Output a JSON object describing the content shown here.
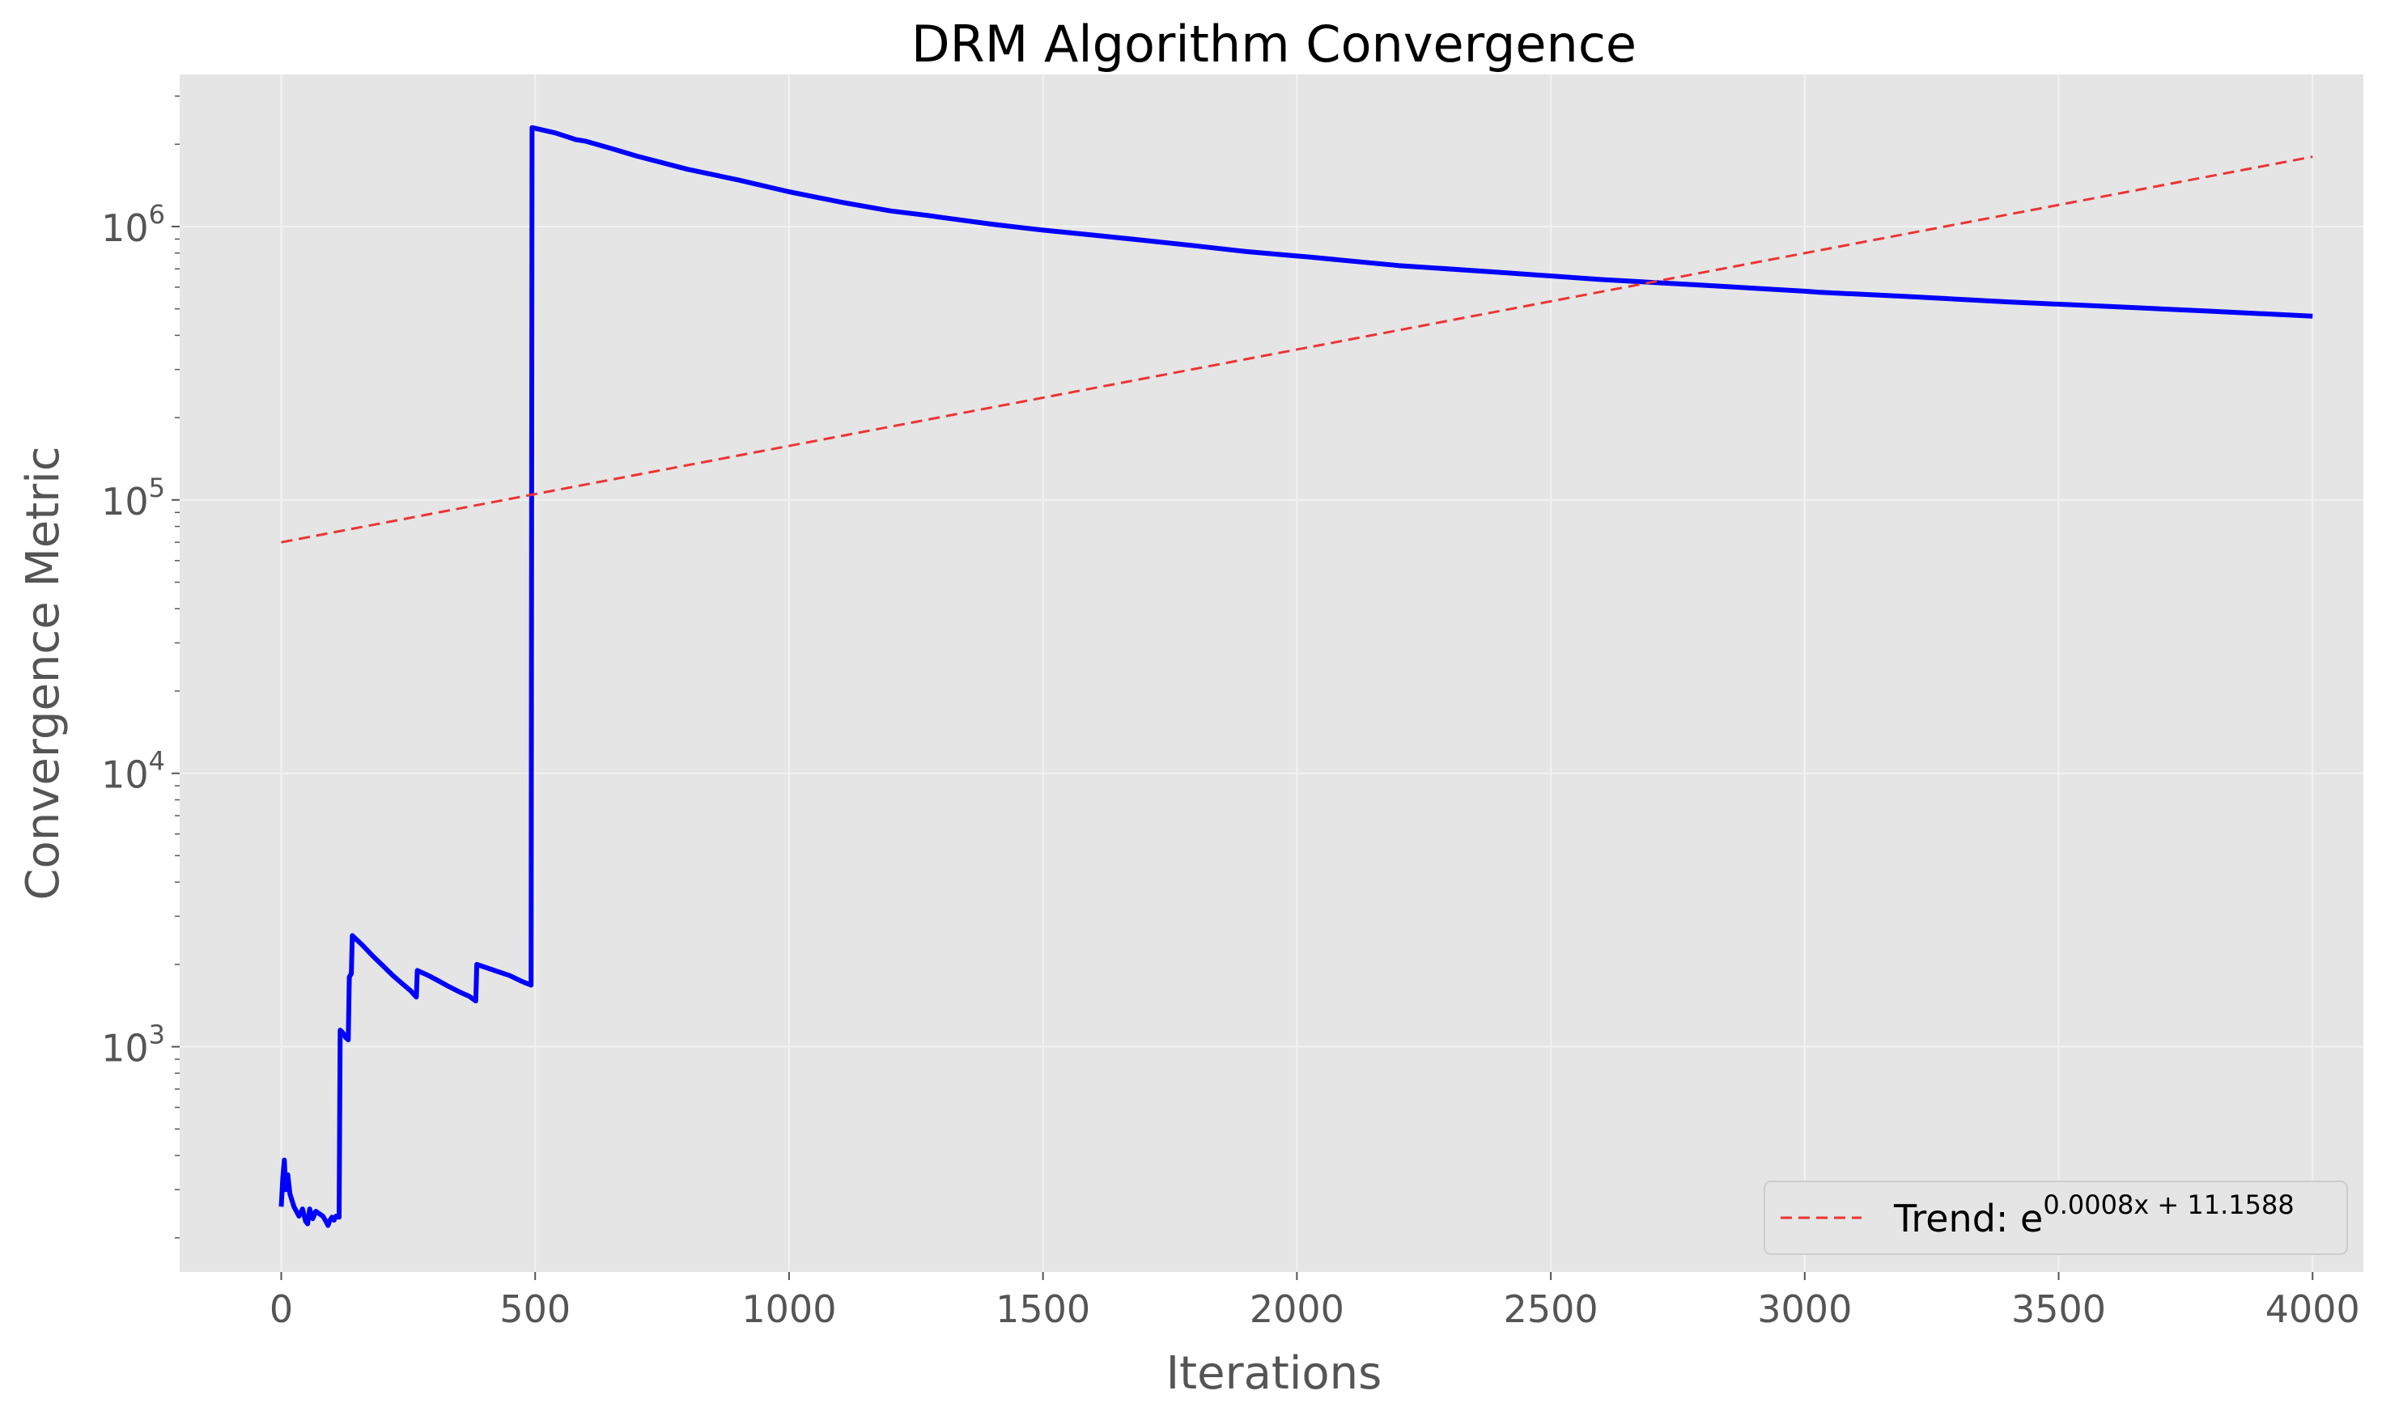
{
  "chart_data": {
    "type": "line",
    "title": "DRM Algorithm Convergence",
    "xlabel": "Iterations",
    "ylabel": "Convergence Metric",
    "xlim": [
      -200,
      4100
    ],
    "ylim": [
      150,
      3600000
    ],
    "yscale": "log",
    "grid": true,
    "legend_position": "lower-right",
    "x_ticks": [
      0,
      500,
      1000,
      1500,
      2000,
      2500,
      3000,
      3500,
      4000
    ],
    "y_ticks": [
      {
        "value": 1000,
        "base": "10",
        "exp": "3"
      },
      {
        "value": 10000,
        "base": "10",
        "exp": "4"
      },
      {
        "value": 100000,
        "base": "10",
        "exp": "5"
      },
      {
        "value": 1000000,
        "base": "10",
        "exp": "6"
      }
    ],
    "series": [
      {
        "color": "#0000ff",
        "style": "solid",
        "points": [
          [
            0,
            260
          ],
          [
            3,
            330
          ],
          [
            6,
            385
          ],
          [
            9,
            300
          ],
          [
            13,
            340
          ],
          [
            17,
            290
          ],
          [
            25,
            260
          ],
          [
            35,
            240
          ],
          [
            42,
            255
          ],
          [
            48,
            230
          ],
          [
            52,
            225
          ],
          [
            56,
            255
          ],
          [
            62,
            235
          ],
          [
            68,
            250
          ],
          [
            75,
            245
          ],
          [
            82,
            240
          ],
          [
            88,
            230
          ],
          [
            92,
            222
          ],
          [
            96,
            232
          ],
          [
            100,
            238
          ],
          [
            104,
            232
          ],
          [
            108,
            240
          ],
          [
            114,
            238
          ],
          [
            116,
            1150
          ],
          [
            122,
            1120
          ],
          [
            127,
            1080
          ],
          [
            132,
            1060
          ],
          [
            134,
            1800
          ],
          [
            138,
            1850
          ],
          [
            140,
            2550
          ],
          [
            160,
            2350
          ],
          [
            180,
            2150
          ],
          [
            200,
            1980
          ],
          [
            220,
            1820
          ],
          [
            240,
            1690
          ],
          [
            255,
            1600
          ],
          [
            266,
            1520
          ],
          [
            268,
            1900
          ],
          [
            290,
            1820
          ],
          [
            310,
            1740
          ],
          [
            330,
            1660
          ],
          [
            350,
            1590
          ],
          [
            370,
            1530
          ],
          [
            383,
            1470
          ],
          [
            385,
            2000
          ],
          [
            420,
            1900
          ],
          [
            450,
            1820
          ],
          [
            475,
            1730
          ],
          [
            492,
            1680
          ],
          [
            494,
            2300000
          ],
          [
            540,
            2200000
          ],
          [
            580,
            2080000
          ],
          [
            600,
            2050000
          ],
          [
            650,
            1930000
          ],
          [
            700,
            1810000
          ],
          [
            800,
            1620000
          ],
          [
            900,
            1480000
          ],
          [
            1000,
            1340000
          ],
          [
            1100,
            1230000
          ],
          [
            1200,
            1140000
          ],
          [
            1270,
            1100000
          ],
          [
            1300,
            1080000
          ],
          [
            1400,
            1020000
          ],
          [
            1500,
            970000
          ],
          [
            1600,
            930000
          ],
          [
            1700,
            890000
          ],
          [
            1800,
            850000
          ],
          [
            1900,
            810000
          ],
          [
            2000,
            780000
          ],
          [
            2020,
            775000
          ],
          [
            2200,
            720000
          ],
          [
            2400,
            680000
          ],
          [
            2600,
            640000
          ],
          [
            2800,
            610000
          ],
          [
            3000,
            580000
          ],
          [
            3030,
            575000
          ],
          [
            3200,
            555000
          ],
          [
            3400,
            530000
          ],
          [
            3600,
            510000
          ],
          [
            3800,
            490000
          ],
          [
            4000,
            470000
          ]
        ]
      },
      {
        "name": "Trend: e",
        "name_exponent": "0.0008x + 11.1588",
        "color": "#ee3333",
        "style": "dashed",
        "points": [
          [
            0,
            70000
          ],
          [
            4000,
            1800000
          ]
        ]
      }
    ]
  }
}
